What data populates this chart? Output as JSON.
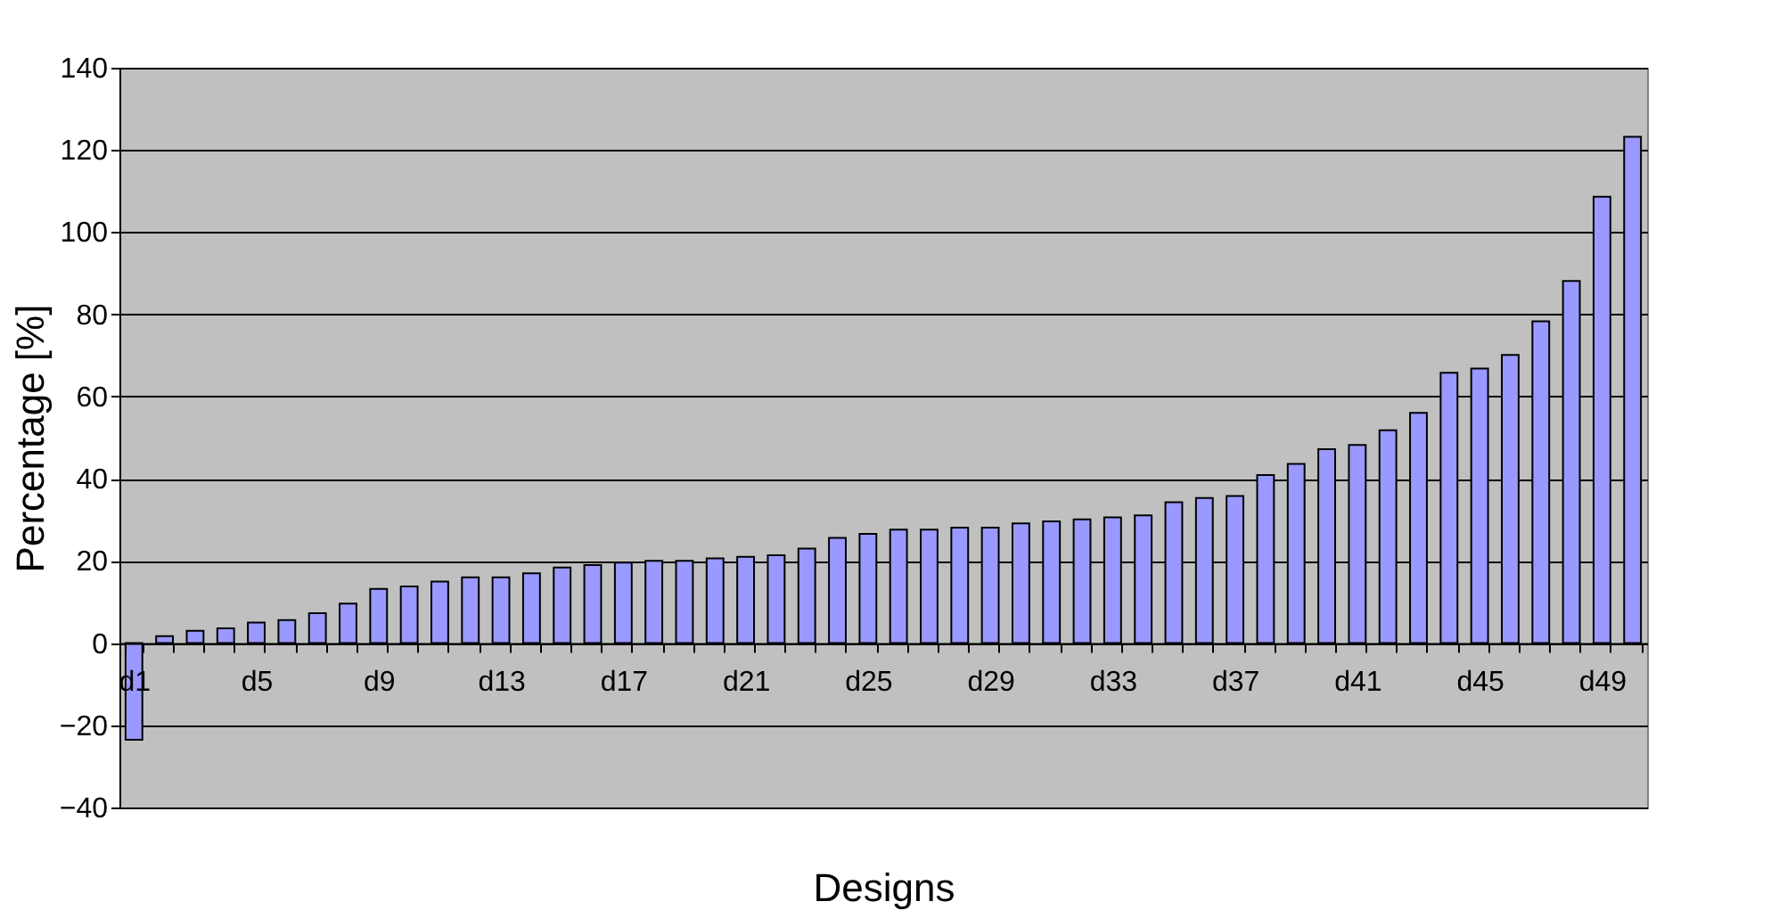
{
  "chart_data": {
    "type": "bar",
    "xlabel": "Designs",
    "ylabel": "Percentage [%]",
    "categories": [
      "d1",
      null,
      null,
      null,
      "d5",
      null,
      null,
      null,
      "d9",
      null,
      null,
      null,
      "d13",
      null,
      null,
      null,
      "d17",
      null,
      null,
      null,
      "d21",
      null,
      null,
      null,
      "d25",
      null,
      null,
      null,
      "d29",
      null,
      null,
      null,
      "d33",
      null,
      null,
      null,
      "d37",
      null,
      null,
      null,
      "d41",
      null,
      null,
      null,
      "d45",
      null,
      null,
      null,
      "d49",
      null
    ],
    "values": [
      -23.5,
      1.7,
      3,
      3.6,
      5,
      5.6,
      7.3,
      9.6,
      13.2,
      13.8,
      15,
      16,
      16,
      17,
      18.4,
      19,
      19.6,
      20,
      20,
      20.6,
      21,
      21.4,
      23,
      25.6,
      26.6,
      27.6,
      27.6,
      28.1,
      28.1,
      29.1,
      29.6,
      30.1,
      30.6,
      31.1,
      34.3,
      35.3,
      35.8,
      40.9,
      43.6,
      47.2,
      48.2,
      51.8,
      56,
      65.8,
      66.8,
      70.1,
      78.3,
      88.1,
      108.6,
      123.2
    ],
    "color": "#9999ff",
    "ylim": [
      -40,
      140
    ],
    "yticks": [
      -40,
      -20,
      0,
      20,
      40,
      60,
      80,
      100,
      120,
      140
    ],
    "grid": "y"
  }
}
